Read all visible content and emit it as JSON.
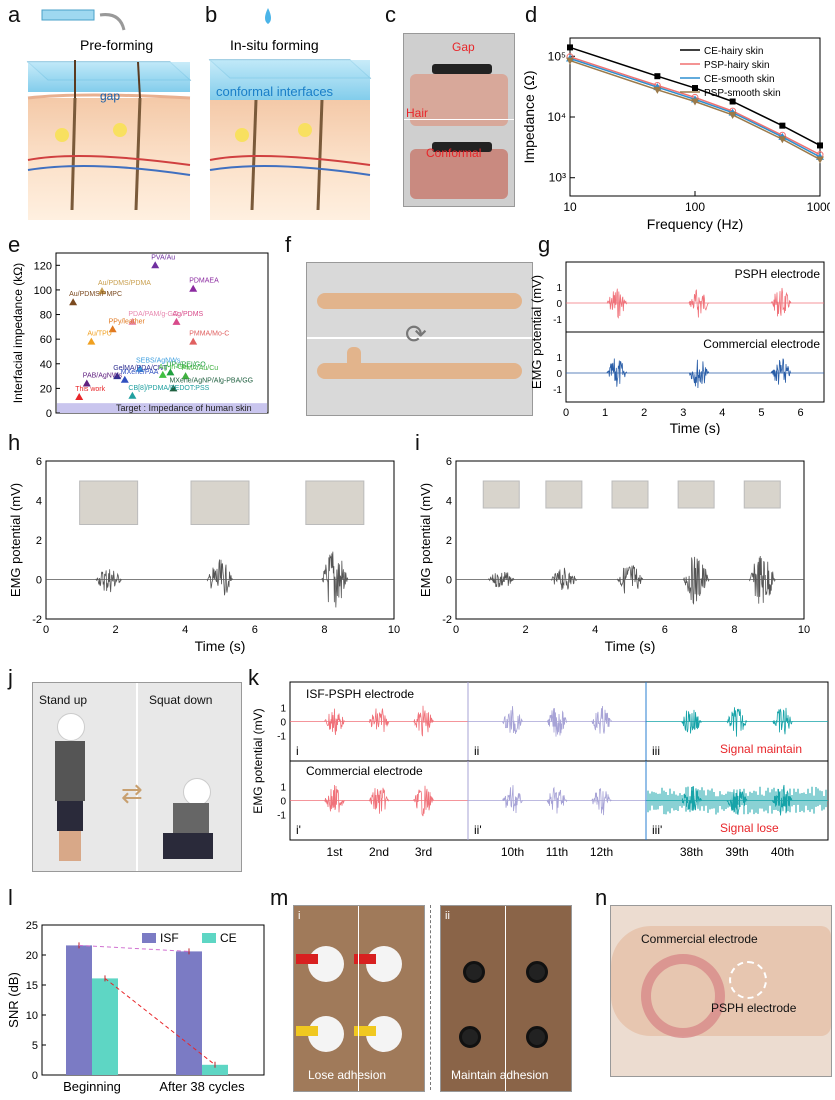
{
  "labels": {
    "a": "a",
    "b": "b",
    "c": "c",
    "d": "d",
    "e": "e",
    "f": "f",
    "g": "g",
    "h": "h",
    "i": "i",
    "j": "j",
    "k": "k",
    "l": "l",
    "m": "m",
    "n": "n"
  },
  "panel_a": {
    "title": "Pre-forming",
    "gap": "gap"
  },
  "panel_b": {
    "title": "In-situ forming",
    "interface": "conformal interfaces"
  },
  "panel_c": {
    "gap": "Gap",
    "hair": "Hair",
    "conformal": "Conformal"
  },
  "panel_g": {
    "top": "PSPH electrode",
    "bottom": "Commercial electrode"
  },
  "panel_j": {
    "stand": "Stand up",
    "squat": "Squat down"
  },
  "panel_k": {
    "top": "ISF-PSPH electrode",
    "bottom": "Commercial electrode",
    "seg_top": [
      "i",
      "ii",
      "iii"
    ],
    "seg_bottom": [
      "i'",
      "ii'",
      "iii'"
    ],
    "maintain": "Signal maintain",
    "lose": "Signal lose",
    "ticks": [
      "1st",
      "2nd",
      "3rd",
      "10th",
      "11th",
      "12th",
      "38th",
      "39th",
      "40th"
    ],
    "ylabel": "EMG potential (mV)"
  },
  "panel_m": {
    "i": "i",
    "ii": "ii",
    "lose": "Lose adhesion",
    "maintain": "Maintain adhesion"
  },
  "panel_n": {
    "commercial": "Commercial  electrode",
    "psph": "PSPH electrode"
  },
  "colors": {
    "red": "#e8262a",
    "grey": "#555555",
    "blue": "#2a5ea8",
    "pink": "#f0727a",
    "purple": "#a7a3d6",
    "teal": "#16a3a8",
    "isf": "#7b7bc4",
    "ce": "#5ed6c4"
  },
  "chart_data": [
    {
      "id": "d",
      "type": "line",
      "xlabel": "Frequency (Hz)",
      "ylabel": "Impedance (Ω)",
      "xscale": "log",
      "yscale": "log",
      "xlim": [
        10,
        1000
      ],
      "ylim": [
        500,
        200000
      ],
      "xticks": [
        "10",
        "100",
        "1000"
      ],
      "yticks": [
        "10³",
        "10⁴",
        "10⁵"
      ],
      "legend_position": "top-right",
      "series": [
        {
          "name": "CE-hairy skin",
          "color": "#000000",
          "marker": "square",
          "x": [
            10,
            50,
            100,
            200,
            500,
            1000
          ],
          "y": [
            140000,
            47000,
            30000,
            18000,
            7200,
            3400
          ]
        },
        {
          "name": "PSP-hairy skin",
          "color": "#f07070",
          "marker": "circle",
          "x": [
            10,
            50,
            100,
            200,
            500,
            1000
          ],
          "y": [
            98000,
            33000,
            21000,
            12500,
            5000,
            2400
          ]
        },
        {
          "name": "CE-smooth skin",
          "color": "#2e8fd0",
          "marker": "triangle",
          "x": [
            10,
            50,
            100,
            200,
            500,
            1000
          ],
          "y": [
            92000,
            31000,
            19500,
            11800,
            4700,
            2200
          ]
        },
        {
          "name": "PSP-smooth skin",
          "color": "#9b7a4a",
          "marker": "triangle-down",
          "x": [
            10,
            50,
            100,
            200,
            500,
            1000
          ],
          "y": [
            85000,
            28000,
            18000,
            10800,
            4300,
            2000
          ]
        }
      ]
    },
    {
      "id": "e",
      "type": "scatter",
      "ylabel": "Interfacial impedance (kΩ)",
      "ylim": [
        0,
        130
      ],
      "yticks": [
        "0",
        "20",
        "40",
        "60",
        "80",
        "100",
        "120"
      ],
      "target": "Target : Impedance of human skin",
      "points": [
        {
          "label": "PVA/Au",
          "y": 120,
          "color": "#7030a0"
        },
        {
          "label": "PDMAEA",
          "y": 101,
          "color": "#8b2aa0"
        },
        {
          "label": "Au/PDMS/PDMA",
          "y": 99,
          "color": "#c9a050"
        },
        {
          "label": "Au/PDMS/PMPC",
          "y": 90,
          "color": "#7b4a20"
        },
        {
          "label": "PDA/PAM/g-GO",
          "y": 74,
          "color": "#e888b0"
        },
        {
          "label": "Ag/PDMS",
          "y": 74,
          "color": "#d84a8a"
        },
        {
          "label": "PPy/leather",
          "y": 68,
          "color": "#e07820"
        },
        {
          "label": "Au/TPU",
          "y": 58,
          "color": "#f0a020"
        },
        {
          "label": "PMMA/Mo-C",
          "y": 58,
          "color": "#e06060"
        },
        {
          "label": "SEBS/AgNWs",
          "y": 36,
          "color": "#40a0e0"
        },
        {
          "label": "GelMA/PDA/CNT",
          "y": 30,
          "color": "#303090"
        },
        {
          "label": "UPy/PEI/GO",
          "y": 33,
          "color": "#20a040"
        },
        {
          "label": "Ag-in-Gel",
          "y": 31,
          "color": "#40c040"
        },
        {
          "label": "PMA/Au/Cu",
          "y": 30,
          "color": "#40b040"
        },
        {
          "label": "MXene/PAA",
          "y": 27,
          "color": "#3050c0"
        },
        {
          "label": "PAB/AgNWs",
          "y": 24,
          "color": "#602080"
        },
        {
          "label": "MXene/AgNP/Alg-PBA/GG",
          "y": 20,
          "color": "#206040"
        },
        {
          "label": "CB[8]/PDMA/PEDOT:PSS",
          "y": 14,
          "color": "#20a0a0"
        },
        {
          "label": "This work",
          "y": 13,
          "color": "#e8262a"
        }
      ]
    },
    {
      "id": "g",
      "type": "line",
      "xlabel": "Time (s)",
      "ylabel": "EMG potential (mV)",
      "xlim": [
        0,
        6.6
      ],
      "xticks": [
        "0",
        "1",
        "2",
        "3",
        "4",
        "5",
        "6"
      ],
      "yticks": [
        "-1",
        "0",
        "1"
      ],
      "series": [
        {
          "name": "PSPH electrode",
          "bursts": [
            1.3,
            3.4,
            5.5
          ]
        },
        {
          "name": "Commercial electrode",
          "bursts": [
            1.3,
            3.4,
            5.5
          ]
        }
      ]
    },
    {
      "id": "h",
      "type": "line",
      "xlabel": "Time (s)",
      "ylabel": "EMG potential (mV)",
      "xlim": [
        0,
        10
      ],
      "ylim": [
        -2,
        6
      ],
      "xticks": [
        "0",
        "2",
        "4",
        "6",
        "8",
        "10"
      ],
      "yticks": [
        "-2",
        "0",
        "2",
        "4",
        "6"
      ],
      "bursts": [
        {
          "t": 1.8,
          "amp": 0.7
        },
        {
          "t": 5.0,
          "amp": 1.0
        },
        {
          "t": 8.3,
          "amp": 1.8
        }
      ]
    },
    {
      "id": "i",
      "type": "line",
      "xlabel": "Time (s)",
      "ylabel": "EMG potential (mV)",
      "xlim": [
        0,
        10
      ],
      "ylim": [
        -2,
        6
      ],
      "xticks": [
        "0",
        "2",
        "4",
        "6",
        "8",
        "10"
      ],
      "yticks": [
        "-2",
        "0",
        "2",
        "4",
        "6"
      ],
      "bursts": [
        {
          "t": 1.3,
          "amp": 0.5
        },
        {
          "t": 3.1,
          "amp": 0.6
        },
        {
          "t": 5.0,
          "amp": 0.9
        },
        {
          "t": 6.9,
          "amp": 1.3
        },
        {
          "t": 8.8,
          "amp": 1.4
        }
      ]
    },
    {
      "id": "l",
      "type": "bar",
      "ylabel": "SNR (dB)",
      "ylim": [
        0,
        25
      ],
      "yticks": [
        "0",
        "5",
        "10",
        "15",
        "20",
        "25"
      ],
      "categories": [
        "Beginning",
        "After 38 cycles"
      ],
      "series": [
        {
          "name": "ISF",
          "color": "#7b7bc4",
          "values": [
            21.6,
            20.6
          ]
        },
        {
          "name": "CE",
          "color": "#5ed6c4",
          "values": [
            16.1,
            1.7
          ]
        }
      ]
    }
  ]
}
